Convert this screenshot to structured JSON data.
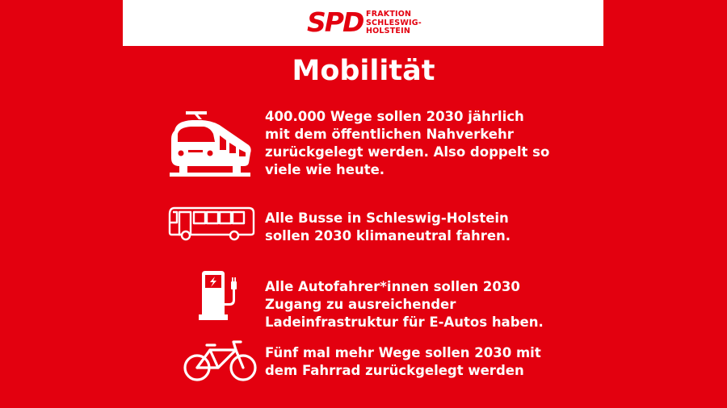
{
  "header": {
    "logo_mark": "SPD",
    "logo_lines": [
      "FRAKTION",
      "SCHLESWIG-",
      "HOLSTEIN"
    ]
  },
  "title": "Mobilität",
  "items": [
    {
      "icon": "train-icon",
      "lines": [
        "400.000 Wege sollen 2030 jährlich",
        "mit dem öffentlichen Nahverkehr",
        "zurückgelegt werden. Also doppelt so",
        "viele wie heute."
      ]
    },
    {
      "icon": "bus-icon",
      "lines": [
        "Alle Busse in Schleswig-Holstein",
        "sollen 2030 klimaneutral fahren."
      ]
    },
    {
      "icon": "charging-station-icon",
      "lines": [
        "Alle Autofahrer*innen sollen 2030",
        "Zugang zu ausreichender",
        "Ladeinfrastruktur für E-Autos haben."
      ]
    },
    {
      "icon": "bicycle-icon",
      "lines": [
        "Fünf mal mehr Wege sollen 2030 mit",
        "dem Fahrrad zurückgelegt werden"
      ]
    }
  ],
  "colors": {
    "background": "#E3000F",
    "header_bg": "#FFFFFF",
    "text": "#FFFFFF"
  }
}
